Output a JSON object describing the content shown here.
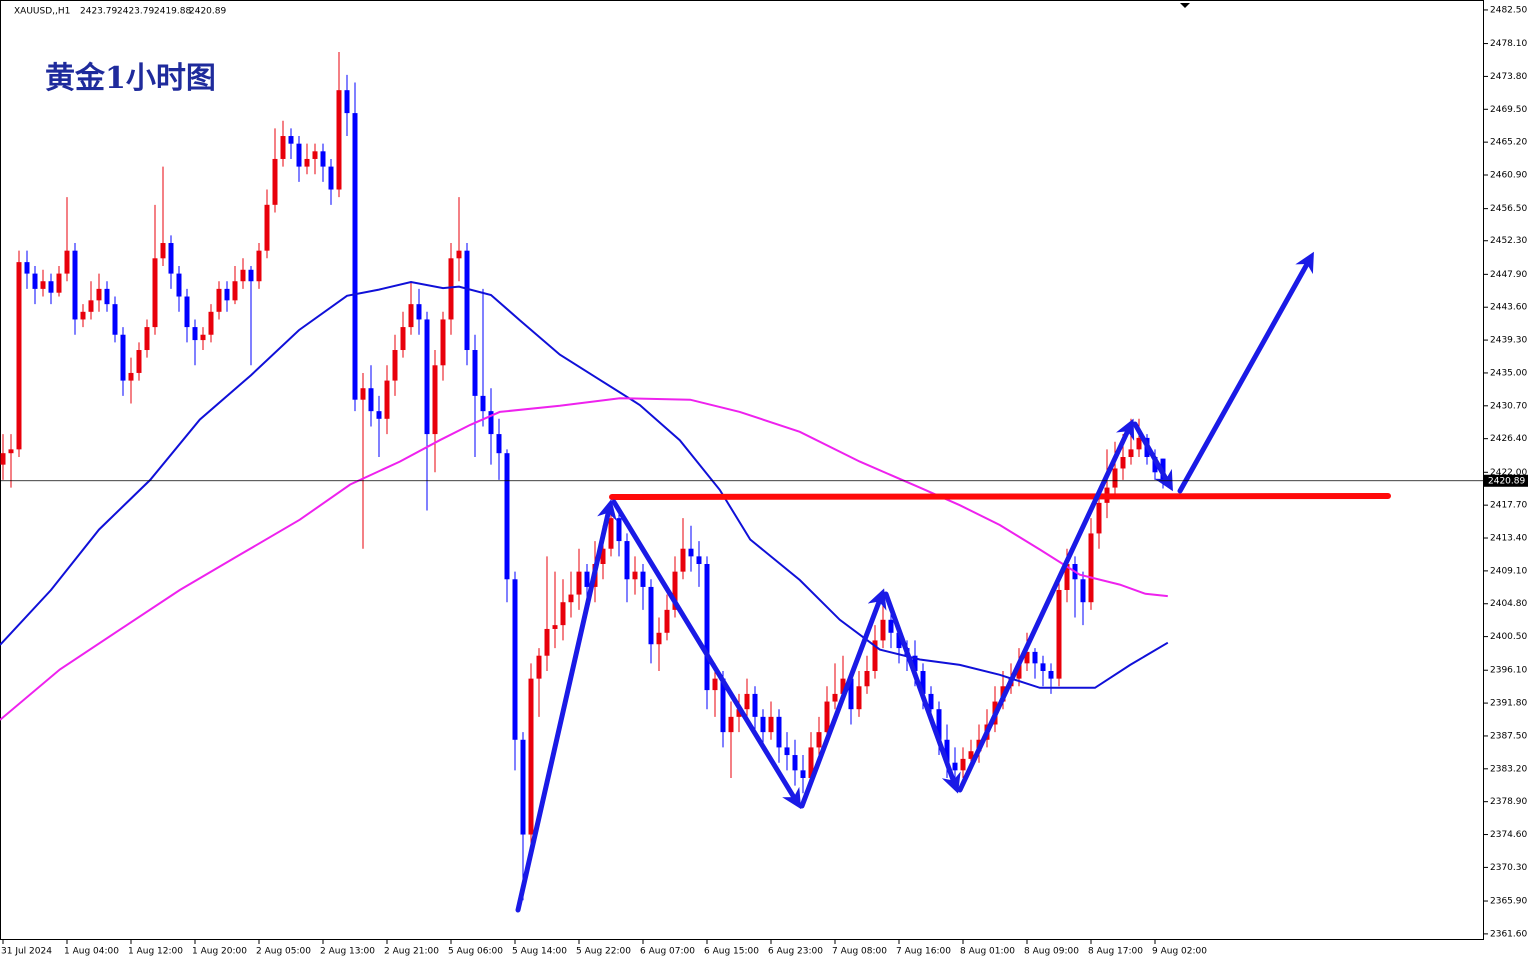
{
  "chart_data": {
    "type": "candlestick",
    "title": "黄金1小时图",
    "symbol": "XAUUSD,,H1",
    "up_color": "#e8000b",
    "down_color": "#0000ff",
    "last_price": 2420.89,
    "ylim": [
      2360.8,
      2483.8
    ],
    "xlim": [
      -0.375,
      185.125
    ],
    "yticks": [
      {
        "value": 2482.5,
        "label": "2482.50"
      },
      {
        "value": 2478.1,
        "label": "2478.10"
      },
      {
        "value": 2473.8,
        "label": "2473.80"
      },
      {
        "value": 2469.5,
        "label": "2469.50"
      },
      {
        "value": 2465.2,
        "label": "2465.20"
      },
      {
        "value": 2460.9,
        "label": "2460.90"
      },
      {
        "value": 2456.5,
        "label": "2456.50"
      },
      {
        "value": 2452.3,
        "label": "2452.30"
      },
      {
        "value": 2447.9,
        "label": "2447.90"
      },
      {
        "value": 2443.6,
        "label": "2443.60"
      },
      {
        "value": 2439.3,
        "label": "2439.30"
      },
      {
        "value": 2435,
        "label": "2435.00"
      },
      {
        "value": 2430.7,
        "label": "2430.70"
      },
      {
        "value": 2426.4,
        "label": "2426.40"
      },
      {
        "value": 2422,
        "label": "2422.00"
      },
      {
        "value": 2417.7,
        "label": "2417.70"
      },
      {
        "value": 2413.4,
        "label": "2413.40"
      },
      {
        "value": 2409.1,
        "label": "2409.10"
      },
      {
        "value": 2404.8,
        "label": "2404.80"
      },
      {
        "value": 2400.5,
        "label": "2400.50"
      },
      {
        "value": 2396.1,
        "label": "2396.10"
      },
      {
        "value": 2391.8,
        "label": "2391.80"
      },
      {
        "value": 2387.5,
        "label": "2387.50"
      },
      {
        "value": 2383.2,
        "label": "2383.20"
      },
      {
        "value": 2378.9,
        "label": "2378.90"
      },
      {
        "value": 2374.6,
        "label": "2374.60"
      },
      {
        "value": 2370.3,
        "label": "2370.30"
      },
      {
        "value": 2365.9,
        "label": "2365.90"
      },
      {
        "value": 2361.6,
        "label": "2361.60"
      }
    ],
    "xticks": [
      {
        "value": 0,
        "label": "31 Jul 2024"
      },
      {
        "value": 8,
        "label": "1 Aug 04:00"
      },
      {
        "value": 16,
        "label": "1 Aug 12:00"
      },
      {
        "value": 24,
        "label": "1 Aug 20:00"
      },
      {
        "value": 32,
        "label": "2 Aug 05:00"
      },
      {
        "value": 40,
        "label": "2 Aug 13:00"
      },
      {
        "value": 48,
        "label": "2 Aug 21:00"
      },
      {
        "value": 56,
        "label": "5 Aug 06:00"
      },
      {
        "value": 64,
        "label": "5 Aug 14:00"
      },
      {
        "value": 72,
        "label": "5 Aug 22:00"
      },
      {
        "value": 80,
        "label": "6 Aug 07:00"
      },
      {
        "value": 88,
        "label": "6 Aug 15:00"
      },
      {
        "value": 96,
        "label": "6 Aug 23:00"
      },
      {
        "value": 104,
        "label": "7 Aug 08:00"
      },
      {
        "value": 112,
        "label": "7 Aug 16:00"
      },
      {
        "value": 120,
        "label": "8 Aug 01:00"
      },
      {
        "value": 128,
        "label": "8 Aug 09:00"
      },
      {
        "value": 136,
        "label": "8 Aug 17:00"
      },
      {
        "value": 144,
        "label": "9 Aug 02:00"
      }
    ],
    "candles": [
      [
        2423,
        2427,
        2421,
        2424.5
      ],
      [
        2424.5,
        2427,
        2420,
        2425
      ],
      [
        2425,
        2451,
        2424,
        2449.5
      ],
      [
        2449.5,
        2451,
        2446,
        2448
      ],
      [
        2448,
        2449,
        2444,
        2446
      ],
      [
        2446,
        2448.5,
        2445,
        2447
      ],
      [
        2447,
        2448,
        2444,
        2445.5
      ],
      [
        2445.5,
        2449,
        2445,
        2448
      ],
      [
        2448,
        2458,
        2447,
        2451
      ],
      [
        2451,
        2452,
        2440,
        2442
      ],
      [
        2442,
        2444,
        2441,
        2443
      ],
      [
        2443,
        2447,
        2442,
        2444.5
      ],
      [
        2444.5,
        2448,
        2443,
        2446
      ],
      [
        2446,
        2447,
        2443,
        2444
      ],
      [
        2444,
        2445,
        2439,
        2440
      ],
      [
        2440,
        2441,
        2432,
        2434
      ],
      [
        2434,
        2437,
        2431,
        2435
      ],
      [
        2435,
        2439,
        2434,
        2438
      ],
      [
        2438,
        2442,
        2437,
        2441
      ],
      [
        2441,
        2457,
        2440,
        2450
      ],
      [
        2450,
        2462,
        2449,
        2452
      ],
      [
        2452,
        2453,
        2446,
        2448
      ],
      [
        2448,
        2449,
        2443,
        2445
      ],
      [
        2445,
        2446,
        2439,
        2441
      ],
      [
        2441,
        2442,
        2436,
        2439.3
      ],
      [
        2439.3,
        2441,
        2438,
        2440
      ],
      [
        2440,
        2444,
        2439,
        2443
      ],
      [
        2443,
        2447,
        2442,
        2446
      ],
      [
        2446,
        2447,
        2443,
        2444.5
      ],
      [
        2444.5,
        2449,
        2444,
        2447
      ],
      [
        2447,
        2450,
        2446,
        2448.5
      ],
      [
        2448.5,
        2449,
        2436,
        2447
      ],
      [
        2447,
        2452,
        2446,
        2451
      ],
      [
        2451,
        2459,
        2450,
        2457
      ],
      [
        2457,
        2467,
        2456,
        2463
      ],
      [
        2463,
        2468,
        2462,
        2466
      ],
      [
        2466,
        2467,
        2463,
        2465
      ],
      [
        2465,
        2466,
        2460,
        2462
      ],
      [
        2462,
        2465,
        2461,
        2463
      ],
      [
        2463,
        2465,
        2461,
        2464
      ],
      [
        2464,
        2465,
        2460,
        2462
      ],
      [
        2462,
        2463,
        2457,
        2459
      ],
      [
        2459,
        2477,
        2458,
        2472
      ],
      [
        2472,
        2474,
        2466,
        2469
      ],
      [
        2469,
        2473,
        2430,
        2431.5
      ],
      [
        2431.5,
        2435,
        2412,
        2433
      ],
      [
        2433,
        2436,
        2428,
        2430
      ],
      [
        2430,
        2432,
        2424,
        2429
      ],
      [
        2429,
        2436,
        2427,
        2434
      ],
      [
        2434,
        2440,
        2432,
        2438
      ],
      [
        2438,
        2443,
        2437,
        2441
      ],
      [
        2441,
        2447,
        2440,
        2444
      ],
      [
        2444,
        2446,
        2440,
        2442
      ],
      [
        2442,
        2443,
        2417,
        2427
      ],
      [
        2427,
        2438,
        2422,
        2436
      ],
      [
        2436,
        2443,
        2434,
        2442
      ],
      [
        2442,
        2452,
        2440,
        2450
      ],
      [
        2450,
        2458,
        2447,
        2451
      ],
      [
        2451,
        2452,
        2436,
        2438
      ],
      [
        2438,
        2440,
        2424,
        2432
      ],
      [
        2432,
        2446,
        2428,
        2430
      ],
      [
        2430,
        2433,
        2423,
        2427
      ],
      [
        2427,
        2429,
        2421,
        2424.5
      ],
      [
        2424.5,
        2425,
        2405,
        2408
      ],
      [
        2408,
        2409,
        2383,
        2387
      ],
      [
        2387,
        2388,
        2366,
        2374.6
      ],
      [
        2374.6,
        2397,
        2373,
        2395
      ],
      [
        2395,
        2399,
        2390,
        2398
      ],
      [
        2398,
        2411,
        2396,
        2401.5
      ],
      [
        2401.5,
        2409,
        2399,
        2402
      ],
      [
        2402,
        2408,
        2400,
        2405
      ],
      [
        2405,
        2409,
        2403,
        2406
      ],
      [
        2406,
        2412,
        2404,
        2409
      ],
      [
        2409,
        2410,
        2404,
        2407
      ],
      [
        2407,
        2413,
        2405,
        2410
      ],
      [
        2410,
        2415,
        2408,
        2412
      ],
      [
        2412,
        2418,
        2411,
        2416
      ],
      [
        2416,
        2417,
        2411,
        2413
      ],
      [
        2413,
        2414,
        2405,
        2408
      ],
      [
        2408,
        2411,
        2406,
        2409
      ],
      [
        2409,
        2410,
        2404,
        2407
      ],
      [
        2407,
        2408,
        2397,
        2399.5
      ],
      [
        2399.5,
        2403,
        2396,
        2401
      ],
      [
        2401,
        2406,
        2400,
        2404
      ],
      [
        2404,
        2411,
        2403,
        2409
      ],
      [
        2409,
        2416,
        2408,
        2412
      ],
      [
        2412,
        2415,
        2409,
        2411
      ],
      [
        2411,
        2413,
        2407,
        2410
      ],
      [
        2410,
        2411,
        2391,
        2393.5
      ],
      [
        2393.5,
        2397,
        2390,
        2395
      ],
      [
        2395,
        2396,
        2386,
        2388
      ],
      [
        2388,
        2392,
        2382,
        2390
      ],
      [
        2390,
        2393,
        2388,
        2391
      ],
      [
        2391,
        2395,
        2389,
        2393
      ],
      [
        2393,
        2394,
        2388,
        2390
      ],
      [
        2390,
        2391,
        2386,
        2388
      ],
      [
        2388,
        2392,
        2387,
        2390
      ],
      [
        2390,
        2391,
        2384,
        2386
      ],
      [
        2386,
        2388,
        2383,
        2385
      ],
      [
        2385,
        2387,
        2381,
        2383
      ],
      [
        2383,
        2385,
        2380,
        2382
      ],
      [
        2382,
        2388,
        2381,
        2386
      ],
      [
        2386,
        2390,
        2385,
        2388
      ],
      [
        2388,
        2394,
        2387,
        2392
      ],
      [
        2392,
        2397,
        2391,
        2393
      ],
      [
        2393,
        2398,
        2392,
        2395
      ],
      [
        2395,
        2396,
        2389,
        2391
      ],
      [
        2391,
        2396,
        2390,
        2394
      ],
      [
        2394,
        2398,
        2393,
        2396
      ],
      [
        2396,
        2402,
        2395,
        2400
      ],
      [
        2400,
        2406,
        2399,
        2402.7
      ],
      [
        2402.7,
        2404,
        2399,
        2401
      ],
      [
        2401,
        2402,
        2397,
        2399
      ],
      [
        2399,
        2400,
        2396,
        2398
      ],
      [
        2398,
        2400,
        2394,
        2396
      ],
      [
        2396,
        2397,
        2391,
        2393
      ],
      [
        2393,
        2394,
        2389,
        2391
      ],
      [
        2391,
        2392,
        2385,
        2387
      ],
      [
        2387,
        2389,
        2382,
        2384
      ],
      [
        2384,
        2386,
        2381,
        2383
      ],
      [
        2383,
        2386,
        2382,
        2384.5
      ],
      [
        2384.5,
        2387,
        2383,
        2385.5
      ],
      [
        2385.5,
        2389,
        2384,
        2387
      ],
      [
        2387,
        2391,
        2386,
        2389
      ],
      [
        2389,
        2394,
        2388,
        2392
      ],
      [
        2392,
        2396,
        2391,
        2394
      ],
      [
        2394,
        2397,
        2393,
        2395
      ],
      [
        2395,
        2399,
        2394,
        2397
      ],
      [
        2397,
        2401,
        2396,
        2398.5
      ],
      [
        2398.5,
        2399,
        2395,
        2397
      ],
      [
        2397,
        2398,
        2394,
        2396
      ],
      [
        2396,
        2397,
        2393,
        2395
      ],
      [
        2395,
        2408,
        2394,
        2406.6
      ],
      [
        2406.6,
        2412,
        2405,
        2410
      ],
      [
        2410,
        2411,
        2403,
        2408
      ],
      [
        2408,
        2409,
        2402,
        2405
      ],
      [
        2405,
        2416,
        2404,
        2414
      ],
      [
        2414,
        2419,
        2412,
        2418
      ],
      [
        2418,
        2425,
        2416,
        2420
      ],
      [
        2420,
        2426,
        2419,
        2422.5
      ],
      [
        2422.5,
        2427,
        2421,
        2424
      ],
      [
        2424,
        2429,
        2423,
        2425
      ],
      [
        2425,
        2429,
        2424,
        2426.5
      ],
      [
        2426.5,
        2427,
        2423,
        2424
      ],
      [
        2424,
        2425,
        2421,
        2422
      ],
      [
        2423.79,
        2423.79,
        2419.88,
        2420.89
      ]
    ],
    "series": [
      {
        "color": "#1010d8",
        "x": [
          -0.375,
          6,
          12,
          18.4,
          24.6,
          31,
          37,
          43,
          47,
          51,
          55,
          57,
          61,
          64.6,
          69.6,
          74.6,
          79.6,
          84.6,
          89.6,
          93.4,
          99.6,
          104.6,
          109.6,
          114.6,
          119.6,
          124.6,
          129.6,
          136.5,
          140.9,
          145.6
        ],
        "values": [
          2399.4,
          2406.6,
          2414.5,
          2421.0,
          2428.9,
          2434.7,
          2440.6,
          2445.1,
          2445.9,
          2446.9,
          2446.1,
          2446.3,
          2445.2,
          2441.9,
          2437.4,
          2434.1,
          2430.8,
          2426.2,
          2419.7,
          2413.2,
          2407.9,
          2402.7,
          2398.8,
          2397.5,
          2396.8,
          2395.5,
          2393.8,
          2393.8,
          2396.8,
          2399.7
        ]
      },
      {
        "color": "#ee22ee",
        "x": [
          -0.375,
          7.1,
          14.6,
          22.1,
          29.6,
          37.1,
          43.4,
          49.6,
          54.6,
          58.4,
          62.1,
          69.6,
          77.1,
          85.9,
          92.1,
          99.6,
          107.1,
          114.6,
          119.6,
          124.6,
          129.6,
          134.6,
          139.6,
          142.8,
          145.6
        ],
        "values": [
          2389.6,
          2396.2,
          2401.4,
          2406.6,
          2411.2,
          2415.8,
          2420.4,
          2423.4,
          2426.2,
          2428.2,
          2429.9,
          2430.7,
          2431.7,
          2431.5,
          2429.9,
          2427.3,
          2423.4,
          2420.0,
          2417.7,
          2415.1,
          2411.9,
          2408.6,
          2407.3,
          2406.1,
          2405.8
        ]
      }
    ]
  }
}
